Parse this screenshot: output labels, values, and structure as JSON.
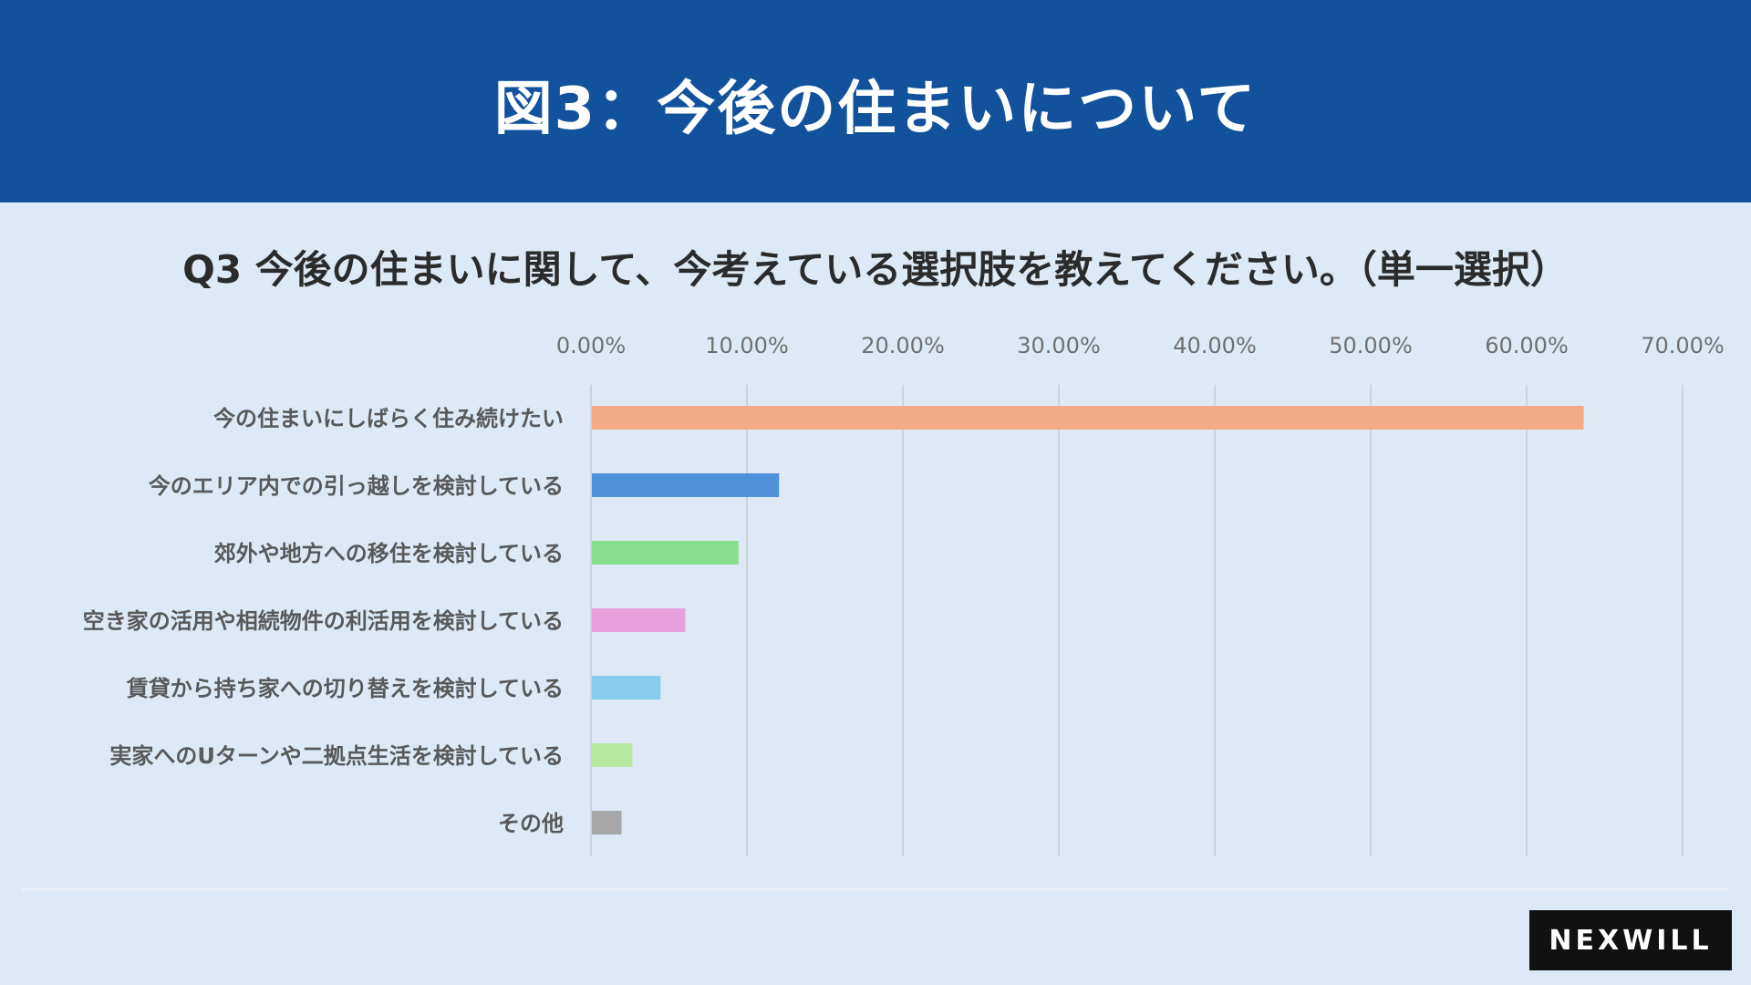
{
  "header": {
    "title": "図3：今後の住まいについて"
  },
  "question": "Q3 今後の住まいに関して、今考えている選択肢を教えてください。（単一選択）",
  "logo": {
    "text": "NEXWILL"
  },
  "chart_data": {
    "type": "bar",
    "orientation": "horizontal",
    "title": "",
    "xlabel": "",
    "ylabel": "",
    "xlim": [
      0,
      70
    ],
    "xticks": [
      "0.00%",
      "10.00%",
      "20.00%",
      "30.00%",
      "40.00%",
      "50.00%",
      "60.00%",
      "70.00%"
    ],
    "grid": true,
    "categories": [
      "今の住まいにしばらく住み続けたい",
      "今のエリア内での引っ越しを検討している",
      "郊外や地方への移住を検討している",
      "空き家の活用や相続物件の利活用を検討している",
      "賃貸から持ち家への切り替えを検討している",
      "実家へのUターンや二拠点生活を検討している",
      "その他"
    ],
    "values": [
      63.6,
      12.0,
      9.4,
      6.0,
      4.4,
      2.6,
      1.9
    ],
    "colors": [
      "#f4aa87",
      "#4f92da",
      "#86e08b",
      "#e8a0dd",
      "#86ccec",
      "#b7e8a0",
      "#a6a6a6"
    ]
  }
}
